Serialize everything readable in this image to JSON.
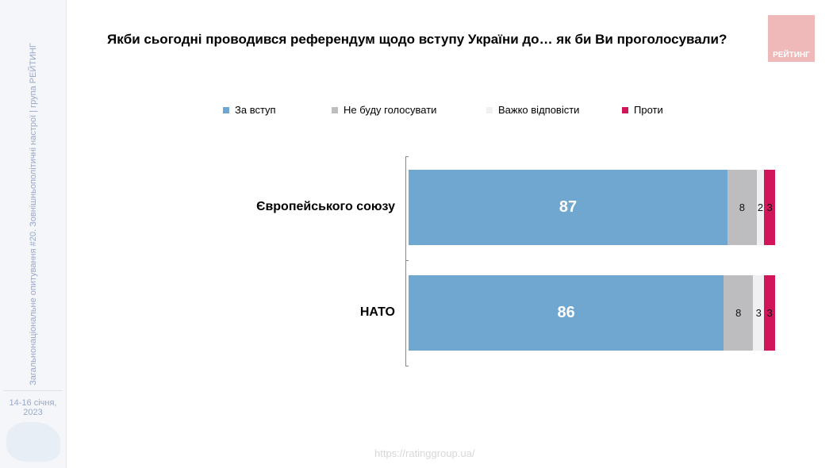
{
  "sidebar": {
    "vertical_text": "Загальнонаціональне опитування #20. Зовнішньополітичні настрої | група РЕЙТИНГ",
    "date": "14-16 січня, 2023"
  },
  "logo": {
    "text": "РЕЙТИНГ",
    "color": "#efb9b9"
  },
  "footer": {
    "url": "https://ratinggroup.ua/"
  },
  "chart_data": {
    "type": "bar",
    "orientation": "horizontal",
    "stacked": true,
    "title": "Якби сьогодні проводився референдум щодо вступу України до… як би Ви проголосували?",
    "categories": [
      "Європейського союзу",
      "НАТО"
    ],
    "legend_position": "top",
    "series": [
      {
        "name": "За вступ",
        "color": "#70a7d1",
        "values": [
          87,
          86
        ]
      },
      {
        "name": "Не буду голосувати",
        "color": "#bdbdbf",
        "values": [
          8,
          8
        ]
      },
      {
        "name": "Важко відповісти",
        "color": "#f0f0f2",
        "values": [
          2,
          3
        ]
      },
      {
        "name": "Проти",
        "color": "#d1155a",
        "values": [
          3,
          3
        ]
      }
    ],
    "xlim": [
      0,
      100
    ]
  }
}
